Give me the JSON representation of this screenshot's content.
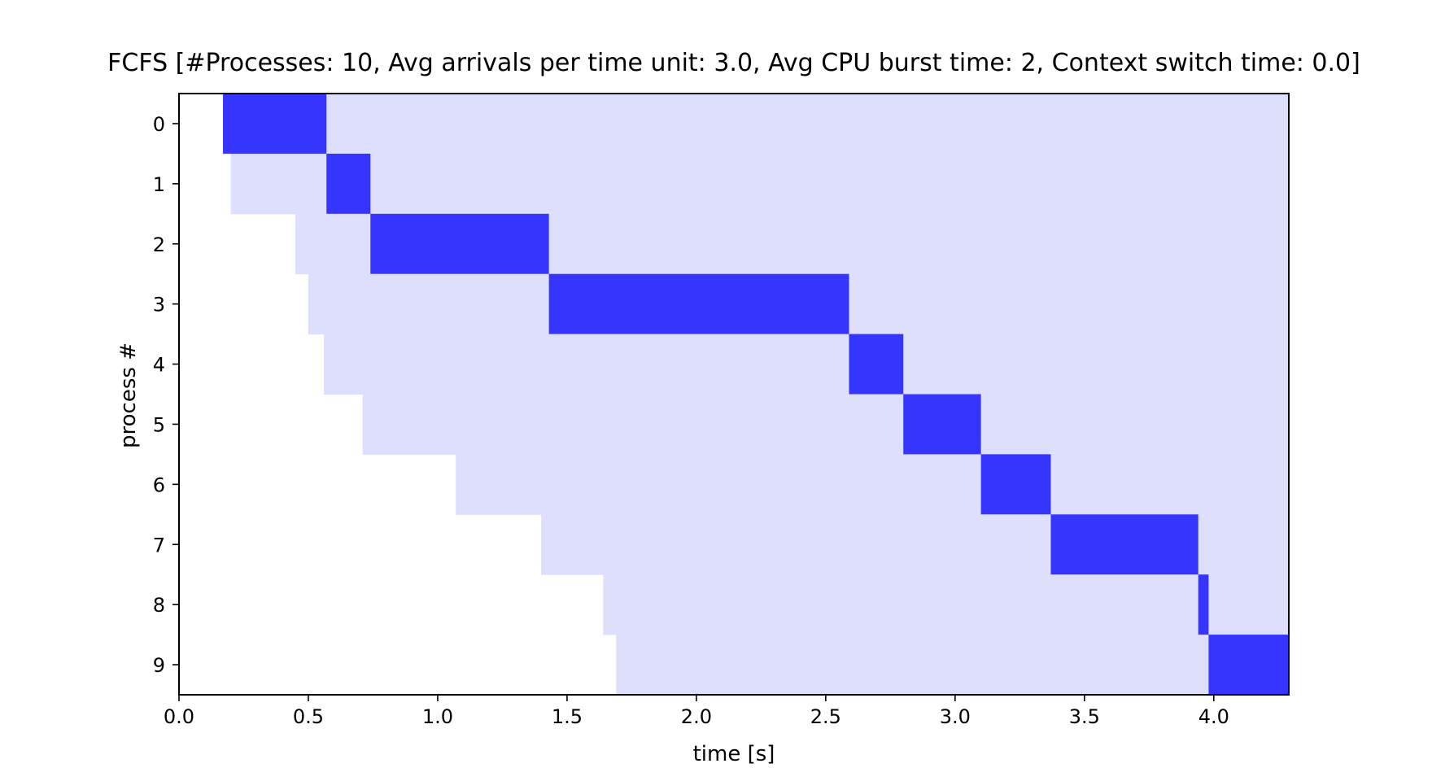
{
  "chart_data": {
    "type": "gantt",
    "title": "FCFS [#Processes: 10, Avg arrivals per time unit: 3.0, Avg CPU burst time: 2, Context switch time: 0.0]",
    "xlabel": "time [s]",
    "ylabel": "process #",
    "xlim": [
      0.0,
      4.29
    ],
    "ylim": [
      -0.5,
      9.5
    ],
    "xticks": [
      0.0,
      0.5,
      1.0,
      1.5,
      2.0,
      2.5,
      3.0,
      3.5,
      4.0
    ],
    "xtick_labels": [
      "0.0",
      "0.5",
      "1.0",
      "1.5",
      "2.0",
      "2.5",
      "3.0",
      "3.5",
      "4.0"
    ],
    "yticks": [
      0,
      1,
      2,
      3,
      4,
      5,
      6,
      7,
      8,
      9
    ],
    "ytick_labels": [
      "0",
      "1",
      "2",
      "3",
      "4",
      "5",
      "6",
      "7",
      "8",
      "9"
    ],
    "grid": false,
    "colors": {
      "waiting": "#dedefd",
      "running": "#3535ff",
      "axes": "#000000"
    },
    "processes": [
      {
        "id": 0,
        "arrival": 0.17,
        "start": 0.17,
        "end": 0.57
      },
      {
        "id": 1,
        "arrival": 0.2,
        "start": 0.57,
        "end": 0.74
      },
      {
        "id": 2,
        "arrival": 0.45,
        "start": 0.74,
        "end": 1.43
      },
      {
        "id": 3,
        "arrival": 0.5,
        "start": 1.43,
        "end": 2.59
      },
      {
        "id": 4,
        "arrival": 0.56,
        "start": 2.59,
        "end": 2.8
      },
      {
        "id": 5,
        "arrival": 0.71,
        "start": 2.8,
        "end": 3.1
      },
      {
        "id": 6,
        "arrival": 1.07,
        "start": 3.1,
        "end": 3.37
      },
      {
        "id": 7,
        "arrival": 1.4,
        "start": 3.37,
        "end": 3.94
      },
      {
        "id": 8,
        "arrival": 1.64,
        "start": 3.94,
        "end": 3.98
      },
      {
        "id": 9,
        "arrival": 1.69,
        "start": 3.98,
        "end": 4.29
      }
    ],
    "waiting_end": 4.29
  }
}
